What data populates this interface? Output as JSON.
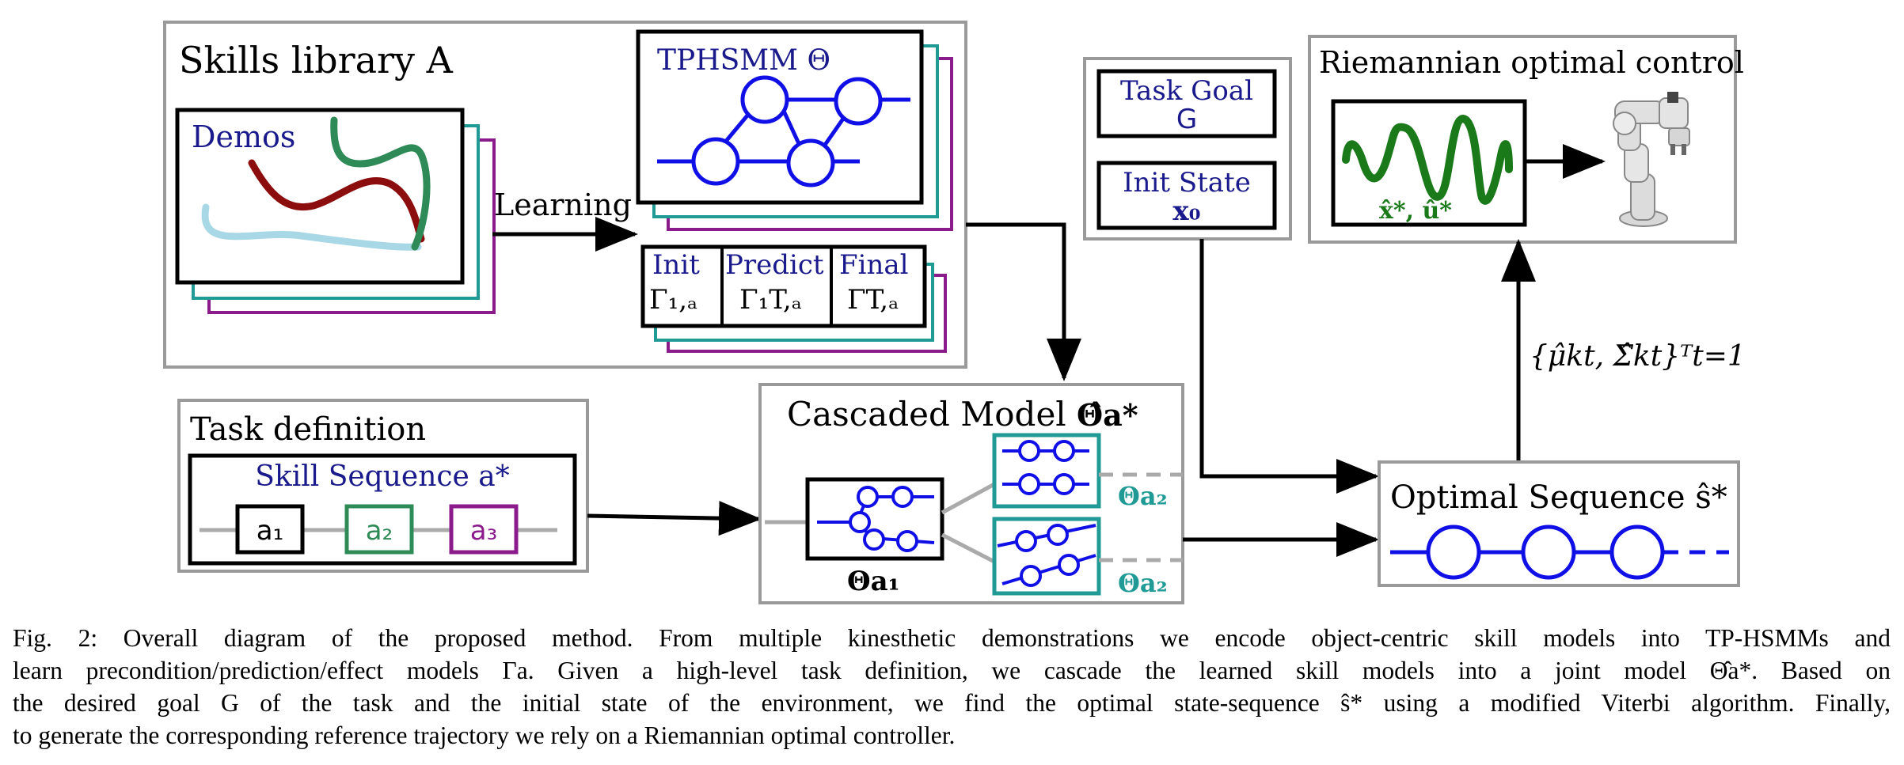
{
  "colors": {
    "blue": "#1010e6",
    "navy": "#1a1a8c",
    "teal": "#1f9a95",
    "purple": "#8b1a8b",
    "green": "#2e8b57",
    "maroon": "#8b0d0d",
    "lightblue": "#a8d8e6",
    "darkgreen": "#1a7a1a",
    "frame": "#9a9a9a",
    "gray": "#aaaaaa"
  },
  "skills_library": {
    "title": "Skills library A",
    "demos_label": "Demos",
    "learning_label": "Learning",
    "tphsmm_label": "TPHSMM Θ",
    "init_label": "Init",
    "init_sym": "Γ₁,ₐ",
    "predict_label": "Predict",
    "predict_sym": "Γ₁T,ₐ",
    "final_label": "Final",
    "final_sym": "ΓT,ₐ"
  },
  "task_goal": {
    "label": "Task Goal",
    "sym": "G"
  },
  "init_state": {
    "label": "Init State",
    "sym": "x₀"
  },
  "riemannian": {
    "title": "Riemannian optimal control",
    "traj_label": "x̂*, û*",
    "robot_icon": "robot-arm-icon"
  },
  "arrow_label": "{μ̂kt, Σ̂kt}ᵀt=1",
  "task_definition": {
    "title": "Task definition",
    "skill_seq_label": "Skill Sequence a*",
    "skills": [
      "a₁",
      "a₂",
      "a₃"
    ]
  },
  "cascaded": {
    "title": "Cascaded Model",
    "title_sym": "Θ̂a*",
    "theta_a1": "Θa₁",
    "theta_a2_top": "Θa₂",
    "theta_a2_bottom": "Θa₂"
  },
  "optimal": {
    "label": "Optimal Sequence ŝ*"
  },
  "caption": {
    "lines": [
      "Fig. 2: Overall diagram of the proposed method. From multiple kinesthetic demonstrations we encode object-centric skill models into TP-HSMMs and",
      "learn precondition/prediction/effect models Γa. Given a high-level task definition, we cascade the learned skill models into a joint model Θ̂a*. Based on",
      "the desired goal G of the task and the initial state of the environment, we find the optimal state-sequence ŝ* using a modified Viterbi algorithm. Finally,",
      "to generate the corresponding reference trajectory we rely on a Riemannian optimal controller."
    ]
  }
}
